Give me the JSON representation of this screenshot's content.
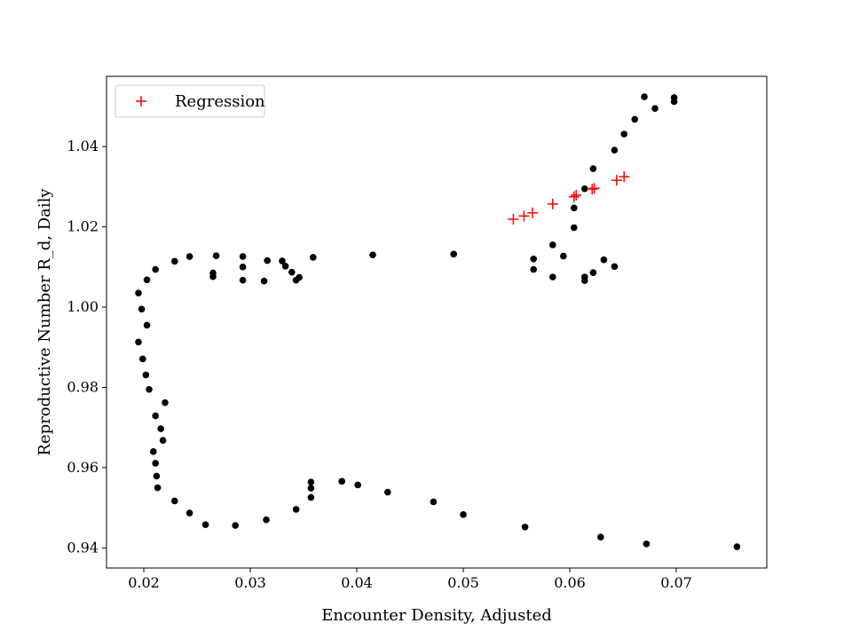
{
  "chart_data": {
    "type": "scatter",
    "xlabel": "Encounter Density, Adjusted",
    "ylabel": "Reproductive Number R_d, Daily",
    "xlim": [
      0.0165,
      0.0785
    ],
    "ylim": [
      0.935,
      1.0575
    ],
    "xticks": [
      0.02,
      0.03,
      0.04,
      0.05,
      0.06,
      0.07
    ],
    "xtick_labels": [
      "0.02",
      "0.03",
      "0.04",
      "0.05",
      "0.06",
      "0.07"
    ],
    "yticks": [
      0.94,
      0.96,
      0.98,
      1.0,
      1.02,
      1.04
    ],
    "ytick_labels": [
      "0.94",
      "0.96",
      "0.98",
      "1.00",
      "1.02",
      "1.04"
    ],
    "grid": false,
    "legend": {
      "position": "top-left",
      "entries": [
        "Regression"
      ]
    },
    "series": [
      {
        "marker": "circle",
        "color": "#000000",
        "points": [
          [
            0.0195,
            1.0035
          ],
          [
            0.0198,
            0.9995
          ],
          [
            0.0203,
            1.0068
          ],
          [
            0.0211,
            1.0094
          ],
          [
            0.0203,
            0.9955
          ],
          [
            0.0195,
            0.9913
          ],
          [
            0.0199,
            0.9871
          ],
          [
            0.0202,
            0.9831
          ],
          [
            0.0205,
            0.9795
          ],
          [
            0.022,
            0.9762
          ],
          [
            0.0211,
            0.9729
          ],
          [
            0.0216,
            0.9697
          ],
          [
            0.0218,
            0.9668
          ],
          [
            0.0209,
            0.964
          ],
          [
            0.0211,
            0.9611
          ],
          [
            0.0212,
            0.9579
          ],
          [
            0.0213,
            0.955
          ],
          [
            0.0229,
            0.9517
          ],
          [
            0.0243,
            0.9487
          ],
          [
            0.0258,
            0.9458
          ],
          [
            0.0286,
            0.9456
          ],
          [
            0.0315,
            0.947
          ],
          [
            0.0343,
            0.9496
          ],
          [
            0.0357,
            0.9526
          ],
          [
            0.0357,
            0.9549
          ],
          [
            0.0357,
            0.9564
          ],
          [
            0.0386,
            0.9566
          ],
          [
            0.0401,
            0.9557
          ],
          [
            0.0429,
            0.9539
          ],
          [
            0.0472,
            0.9515
          ],
          [
            0.05,
            0.9483
          ],
          [
            0.0558,
            0.9452
          ],
          [
            0.0629,
            0.9427
          ],
          [
            0.0672,
            0.941
          ],
          [
            0.0757,
            0.9403
          ],
          [
            0.0229,
            1.0114
          ],
          [
            0.0243,
            1.0126
          ],
          [
            0.0265,
            1.0085
          ],
          [
            0.0265,
            1.0076
          ],
          [
            0.0268,
            1.0128
          ],
          [
            0.0293,
            1.0126
          ],
          [
            0.0293,
            1.01
          ],
          [
            0.0293,
            1.0067
          ],
          [
            0.0313,
            1.0065
          ],
          [
            0.0316,
            1.0116
          ],
          [
            0.033,
            1.0115
          ],
          [
            0.0333,
            1.0102
          ],
          [
            0.0339,
            1.0087
          ],
          [
            0.0343,
            1.0067
          ],
          [
            0.0346,
            1.0074
          ],
          [
            0.0359,
            1.0124
          ],
          [
            0.0415,
            1.013
          ],
          [
            0.0491,
            1.0132
          ],
          [
            0.0566,
            1.012
          ],
          [
            0.0566,
            1.0094
          ],
          [
            0.0584,
            1.0155
          ],
          [
            0.0584,
            1.0075
          ],
          [
            0.0594,
            1.0127
          ],
          [
            0.0604,
            1.0198
          ],
          [
            0.0604,
            1.0247
          ],
          [
            0.0614,
            1.0295
          ],
          [
            0.0614,
            1.0075
          ],
          [
            0.0614,
            1.0066
          ],
          [
            0.0622,
            1.0086
          ],
          [
            0.0622,
            1.0345
          ],
          [
            0.0632,
            1.0118
          ],
          [
            0.0642,
            1.0101
          ],
          [
            0.0642,
            1.0391
          ],
          [
            0.0651,
            1.0431
          ],
          [
            0.0661,
            1.0468
          ],
          [
            0.067,
            1.0524
          ],
          [
            0.068,
            1.0495
          ],
          [
            0.0698,
            1.0522
          ],
          [
            0.0698,
            1.0512
          ]
        ]
      },
      {
        "name": "Regression",
        "marker": "plus",
        "color": "#ff0000",
        "points": [
          [
            0.0547,
            1.0219
          ],
          [
            0.0557,
            1.0227
          ],
          [
            0.0565,
            1.0235
          ],
          [
            0.0584,
            1.0257
          ],
          [
            0.0604,
            1.0275
          ],
          [
            0.0606,
            1.0279
          ],
          [
            0.0621,
            1.0294
          ],
          [
            0.0623,
            1.0296
          ],
          [
            0.0644,
            1.0316
          ],
          [
            0.0651,
            1.0325
          ]
        ]
      }
    ]
  }
}
